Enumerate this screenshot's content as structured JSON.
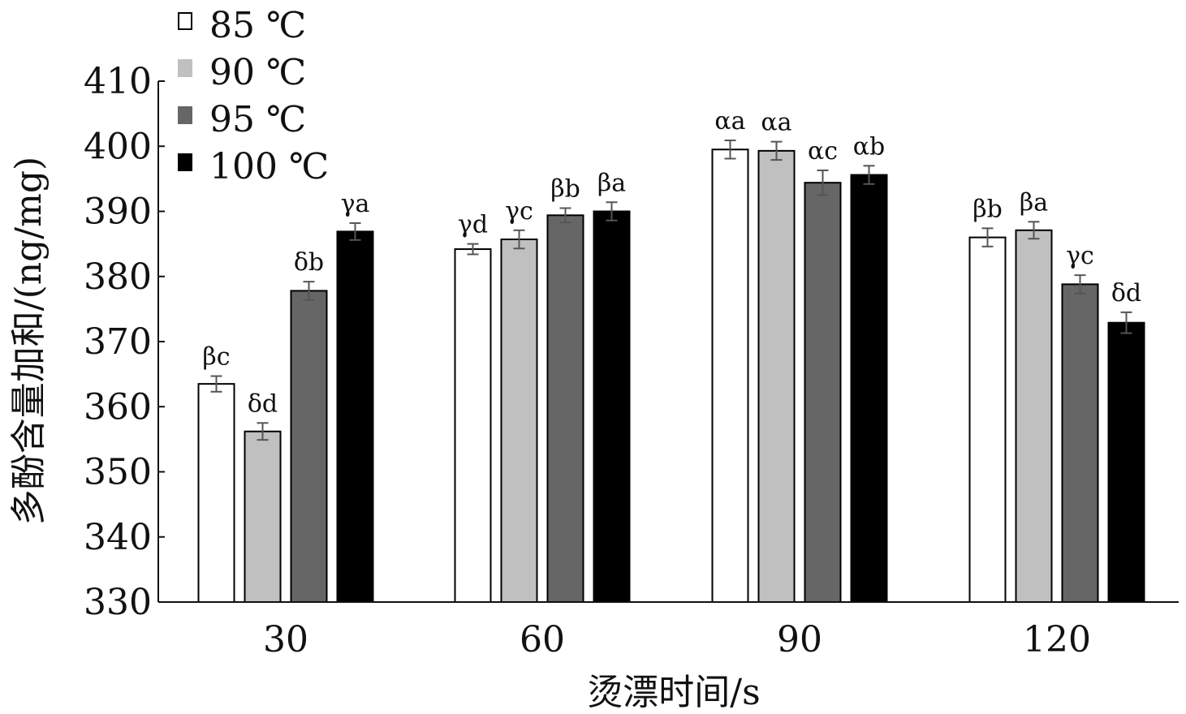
{
  "chart_data": {
    "type": "bar",
    "xlabel": "烫漂时间/s",
    "ylabel": "多酚含量加和/(ng/mg)",
    "ylim": [
      330,
      410
    ],
    "yticks": [
      330,
      340,
      350,
      360,
      370,
      380,
      390,
      400,
      410
    ],
    "categories": [
      "30",
      "60",
      "90",
      "120"
    ],
    "legend_position": "top-left",
    "grid": false,
    "series": [
      {
        "name": "85 ℃",
        "color": "#ffffff",
        "values": [
          363.5,
          384.2,
          399.5,
          386.0
        ],
        "errors": [
          1.2,
          0.8,
          1.4,
          1.4
        ],
        "labels": [
          "βc",
          "γd",
          "αa",
          "βb"
        ]
      },
      {
        "name": "90 ℃",
        "color": "#c0c0c0",
        "values": [
          356.2,
          385.7,
          399.3,
          387.1
        ],
        "errors": [
          1.3,
          1.4,
          1.4,
          1.3
        ],
        "labels": [
          "δd",
          "γc",
          "αa",
          "βa"
        ]
      },
      {
        "name": "95 ℃",
        "color": "#666666",
        "values": [
          377.8,
          389.4,
          394.4,
          378.8
        ],
        "errors": [
          1.4,
          1.1,
          1.9,
          1.4
        ],
        "labels": [
          "δb",
          "βb",
          "αc",
          "γc"
        ]
      },
      {
        "name": "100 ℃",
        "color": "#000000",
        "values": [
          386.9,
          390.0,
          395.6,
          372.9
        ],
        "errors": [
          1.3,
          1.4,
          1.4,
          1.6
        ],
        "labels": [
          "γa",
          "βa",
          "αb",
          "δd"
        ]
      }
    ]
  }
}
